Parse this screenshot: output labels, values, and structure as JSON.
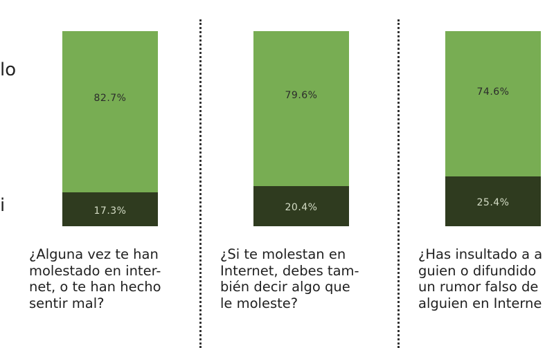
{
  "colors": {
    "yes": "#78ad53",
    "no": "#2f3b1f",
    "yes_label": "#2b2b2b",
    "no_label": "#d4dcc6"
  },
  "side_fragments": [
    "lo",
    "i"
  ],
  "chart_data": {
    "type": "bar",
    "stacked": true,
    "categories": [
      "¿Alguna vez te han molestado en internet, o te han hecho sentir mal?",
      "¿Si te molestan en Internet, debes también decir algo que le moleste?",
      "¿Has insultado a alguien o difundido un rumor falso de alguien en Internet?"
    ],
    "series": [
      {
        "values": [
          82.7,
          79.6,
          74.6
        ],
        "labels": [
          "82.7%",
          "79.6%",
          "74.6%"
        ]
      },
      {
        "values": [
          17.3,
          20.4,
          25.4
        ],
        "labels": [
          "17.3%",
          "20.4%",
          "25.4%"
        ]
      }
    ],
    "ylim": [
      0,
      100
    ],
    "grid": false,
    "legend": "none"
  },
  "questions": [
    {
      "lines": [
        "¿Alguna vez te han",
        "molestado en inter-",
        "net, o te han hecho",
        "sentir mal?"
      ]
    },
    {
      "lines": [
        "¿Si te molestan en",
        "Internet, debes tam-",
        "bién decir algo que",
        "le moleste?"
      ]
    },
    {
      "lines": [
        "¿Has insultado a a",
        "guien o difundido",
        "un rumor falso de",
        "alguien en Interne"
      ]
    }
  ]
}
